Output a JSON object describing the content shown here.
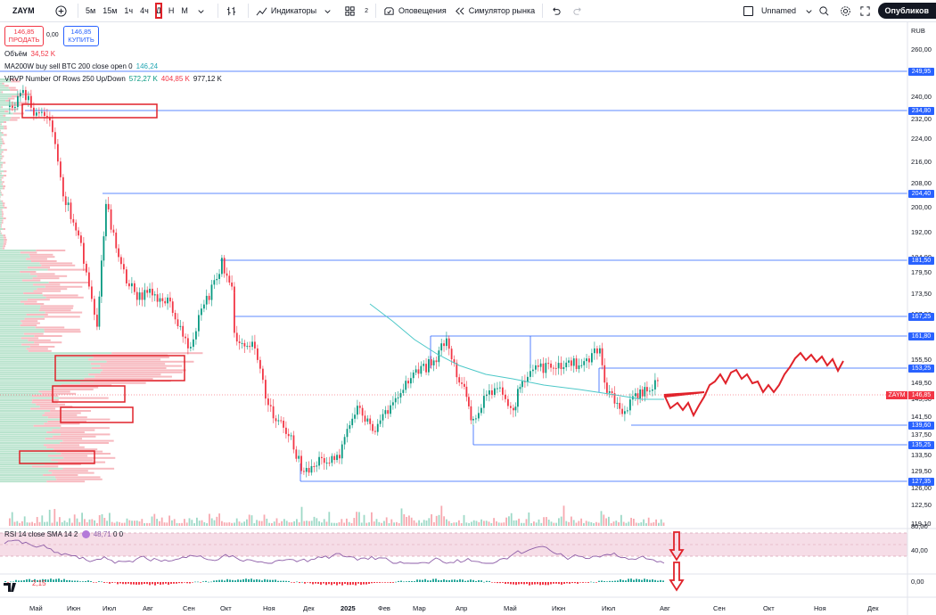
{
  "toolbar": {
    "symbol": "ZAYM",
    "intervals": [
      "5м",
      "15м",
      "1ч",
      "4ч",
      "Д",
      "Н",
      "М"
    ],
    "selected_interval": "Д",
    "indicators": "Индикаторы",
    "layout_count": "2",
    "alerts": "Оповещения",
    "replay": "Симулятор рынка",
    "layout_name": "Unnamed",
    "publish": "Опубликов"
  },
  "trade": {
    "sell_price": "146,85",
    "sell_label": "ПРОДАТЬ",
    "spread": "0,00",
    "buy_price": "146,85",
    "buy_label": "КУПИТЬ"
  },
  "legends": {
    "volume_label": "Объём",
    "volume_value": "34,52 K",
    "ma_label": "MA200W buy sell BTC 200 close open 0",
    "ma_value": "146,24",
    "vrvp_label": "VRVP Number Of Rows 250 Up/Down",
    "vrvp_up": "572,27 K",
    "vrvp_down": "404,85 K",
    "vrvp_total": "977,12 K",
    "rsi_label": "RSI 14 close SMA 14 2",
    "rsi_value": "48,71",
    "rsi_extra": "0 0",
    "macd_value": "2,15"
  },
  "currency": "RUB",
  "current_price": {
    "symbol": "ZAYM",
    "value": "146,85"
  },
  "price_axis": [
    "260,00",
    "248,00",
    "240,00",
    "232,00",
    "224,00",
    "216,00",
    "208,00",
    "200,00",
    "192,00",
    "184,00",
    "179,50",
    "173,50",
    "167,50",
    "161,50",
    "155,50",
    "149,50",
    "145,50",
    "141,50",
    "137,50",
    "133,50",
    "129,50",
    "126,00",
    "122,50",
    "119,10"
  ],
  "level_labels": [
    "249,95",
    "234,80",
    "204,40",
    "181,50",
    "167,25",
    "161,80",
    "153,25",
    "139,60",
    "135,25",
    "127,35"
  ],
  "rsi_axis": [
    "80,00",
    "40,00"
  ],
  "macd_axis": "0,00",
  "time_axis": [
    "Май",
    "Июн",
    "Июл",
    "Авг",
    "Сен",
    "Окт",
    "Ноя",
    "Дек",
    "2025",
    "Фев",
    "Мар",
    "Апр",
    "Май",
    "Июн",
    "Июл",
    "Авг",
    "Сен",
    "Окт",
    "Ноя",
    "Дек"
  ],
  "colors": {
    "up": "#089981",
    "down": "#f23645",
    "level": "#2962ff",
    "ma": "#4dc8c8",
    "accent": "#e0222a"
  },
  "icons": [
    "plus-icon",
    "bars-icon",
    "indicators-icon",
    "templates-icon",
    "alert-icon",
    "replay-icon",
    "undo-icon",
    "redo-icon",
    "search-icon",
    "settings-icon",
    "camera-icon",
    "chevron-down-icon"
  ]
}
